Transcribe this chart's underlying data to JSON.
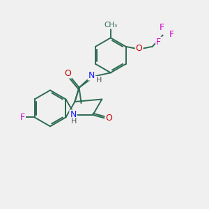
{
  "bg_color": "#f0f0f0",
  "bond_color": "#2d6b52",
  "bond_width": 1.4,
  "N_color": "#1a1aff",
  "O_color": "#cc0000",
  "F_color": "#cc00cc",
  "H_color": "#555555",
  "figsize": [
    3.0,
    3.0
  ],
  "dpi": 100,
  "xlim": [
    0,
    10
  ],
  "ylim": [
    0,
    10
  ]
}
